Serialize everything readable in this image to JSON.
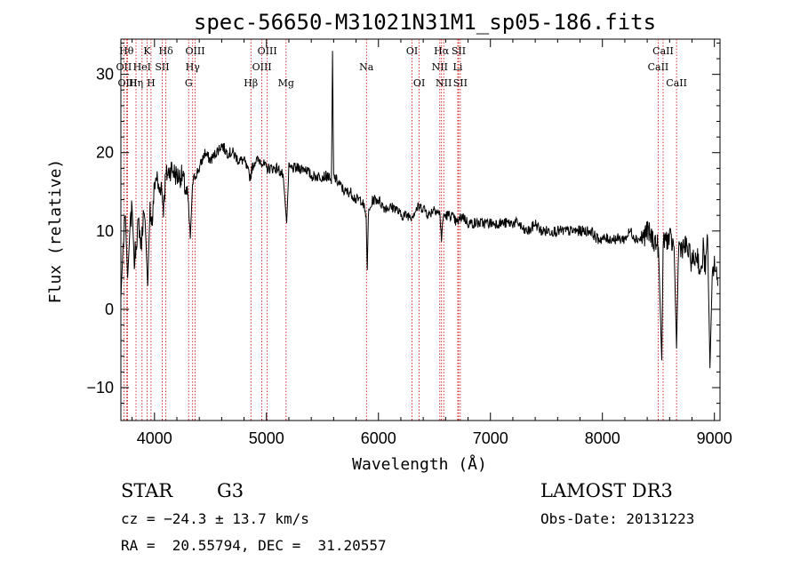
{
  "chart_data": {
    "type": "line",
    "title": "spec-56650-M31021N31M1_sp05-186.fits",
    "xlabel": "Wavelength (Å)",
    "ylabel": "Flux (relative)",
    "xlim": [
      3700,
      9050
    ],
    "ylim": [
      -14.2,
      34.5
    ],
    "x_ticks": [
      4000,
      5000,
      6000,
      7000,
      8000,
      9000
    ],
    "y_ticks": [
      -10,
      0,
      10,
      20,
      30
    ],
    "x_tick_labels": [
      "4000",
      "5000",
      "6000",
      "7000",
      "8000",
      "9000"
    ],
    "y_tick_labels": [
      "−10",
      "0",
      "10",
      "20",
      "30"
    ],
    "series": [
      {
        "name": "flux",
        "x": [
          3700,
          3720,
          3740,
          3760,
          3780,
          3800,
          3820,
          3840,
          3860,
          3880,
          3900,
          3920,
          3940,
          3960,
          3980,
          4000,
          4020,
          4040,
          4060,
          4080,
          4100,
          4150,
          4200,
          4250,
          4280,
          4300,
          4320,
          4340,
          4360,
          4400,
          4450,
          4500,
          4550,
          4600,
          4650,
          4700,
          4750,
          4800,
          4850,
          4860,
          4870,
          4900,
          4950,
          5000,
          5050,
          5100,
          5150,
          5180,
          5200,
          5250,
          5300,
          5350,
          5400,
          5450,
          5500,
          5550,
          5580,
          5590,
          5600,
          5650,
          5700,
          5750,
          5800,
          5850,
          5890,
          5900,
          5910,
          5950,
          6000,
          6050,
          6100,
          6150,
          6200,
          6250,
          6300,
          6350,
          6400,
          6450,
          6500,
          6550,
          6563,
          6580,
          6600,
          6650,
          6700,
          6750,
          6800,
          6850,
          6900,
          6950,
          7000,
          7050,
          7100,
          7150,
          7200,
          7250,
          7300,
          7350,
          7400,
          7450,
          7500,
          7550,
          7600,
          7650,
          7700,
          7750,
          7800,
          7850,
          7900,
          7950,
          8000,
          8050,
          8100,
          8150,
          8200,
          8250,
          8300,
          8350,
          8400,
          8450,
          8500,
          8530,
          8542,
          8560,
          8600,
          8640,
          8662,
          8680,
          8700,
          8750,
          8800,
          8850,
          8880,
          8900,
          8920,
          8940,
          8960,
          8980,
          9000,
          9030
        ],
        "values": [
          1.5,
          8,
          12,
          4,
          10,
          13,
          6,
          9,
          11,
          8,
          12,
          10,
          3,
          13,
          11,
          16,
          17,
          15,
          16,
          13,
          17,
          18,
          17,
          17,
          15,
          14,
          9,
          16,
          17,
          18,
          20,
          19,
          20,
          21,
          20,
          20,
          19,
          19,
          17,
          17,
          18,
          19,
          19,
          18,
          18,
          18,
          17,
          11,
          18,
          18,
          18,
          18,
          17,
          17,
          17,
          17,
          16,
          33,
          17,
          16,
          15,
          15,
          14,
          14,
          12,
          5,
          12,
          14,
          14,
          13,
          13,
          13,
          12,
          12,
          12,
          13,
          13,
          12,
          13,
          12,
          9,
          12,
          12,
          12,
          11,
          12,
          11,
          11,
          11,
          11,
          11,
          11,
          11,
          11,
          11,
          11,
          10,
          10,
          11,
          10,
          10,
          10,
          10,
          10,
          10,
          10,
          10,
          10,
          10,
          9,
          9,
          9,
          9,
          9,
          9,
          10,
          9,
          9,
          10,
          9,
          8,
          -6.5,
          8,
          9,
          9,
          8,
          -5,
          8,
          8,
          8,
          6,
          7,
          4,
          8,
          5,
          9,
          -7.5,
          4,
          6,
          3
        ]
      }
    ],
    "lines": [
      {
        "name": "Hθ",
        "wave": 3750,
        "row": 1
      },
      {
        "name": "OII",
        "wave": 3727,
        "row": 2
      },
      {
        "name": "OIII",
        "wave": 3760,
        "row": 3
      },
      {
        "name": "Hη",
        "wave": 3835,
        "row": 3
      },
      {
        "name": "HeI",
        "wave": 3889,
        "row": 2
      },
      {
        "name": "K",
        "wave": 3934,
        "row": 1
      },
      {
        "name": "H",
        "wave": 3969,
        "row": 3
      },
      {
        "name": "SII",
        "wave": 4069,
        "row": 2
      },
      {
        "name": "Hδ",
        "wave": 4102,
        "row": 1
      },
      {
        "name": "OIII",
        "wave": 4363,
        "row": 1
      },
      {
        "name": "Hγ",
        "wave": 4341,
        "row": 2
      },
      {
        "name": "G",
        "wave": 4305,
        "row": 3
      },
      {
        "name": "Hβ",
        "wave": 4861,
        "row": 3
      },
      {
        "name": "OIII",
        "wave": 5007,
        "row": 1
      },
      {
        "name": "OIII",
        "wave": 4959,
        "row": 2
      },
      {
        "name": "Mg",
        "wave": 5175,
        "row": 3
      },
      {
        "name": "Na",
        "wave": 5893,
        "row": 2
      },
      {
        "name": "OI",
        "wave": 6300,
        "row": 1
      },
      {
        "name": "OI",
        "wave": 6364,
        "row": 3
      },
      {
        "name": "Hα",
        "wave": 6563,
        "row": 1
      },
      {
        "name": "NII",
        "wave": 6548,
        "row": 2
      },
      {
        "name": "NII",
        "wave": 6583,
        "row": 3
      },
      {
        "name": "SII",
        "wave": 6716,
        "row": 1
      },
      {
        "name": "Li",
        "wave": 6708,
        "row": 2
      },
      {
        "name": "SII",
        "wave": 6731,
        "row": 3
      },
      {
        "name": "CaII",
        "wave": 8542,
        "row": 1
      },
      {
        "name": "CaII",
        "wave": 8498,
        "row": 2
      },
      {
        "name": "CaII",
        "wave": 8662,
        "row": 3
      }
    ],
    "grid": false,
    "line_color": "#000000",
    "marker_color": "#cc0000"
  },
  "info": {
    "object_class": "STAR",
    "subclass": "G3",
    "survey": "LAMOST DR3",
    "redshift": "cz = −24.3 ± 13.7 km/s",
    "obs_date": "Obs-Date: 20131223",
    "coordinates": "RA =  20.55794, DEC =  31.20557"
  }
}
